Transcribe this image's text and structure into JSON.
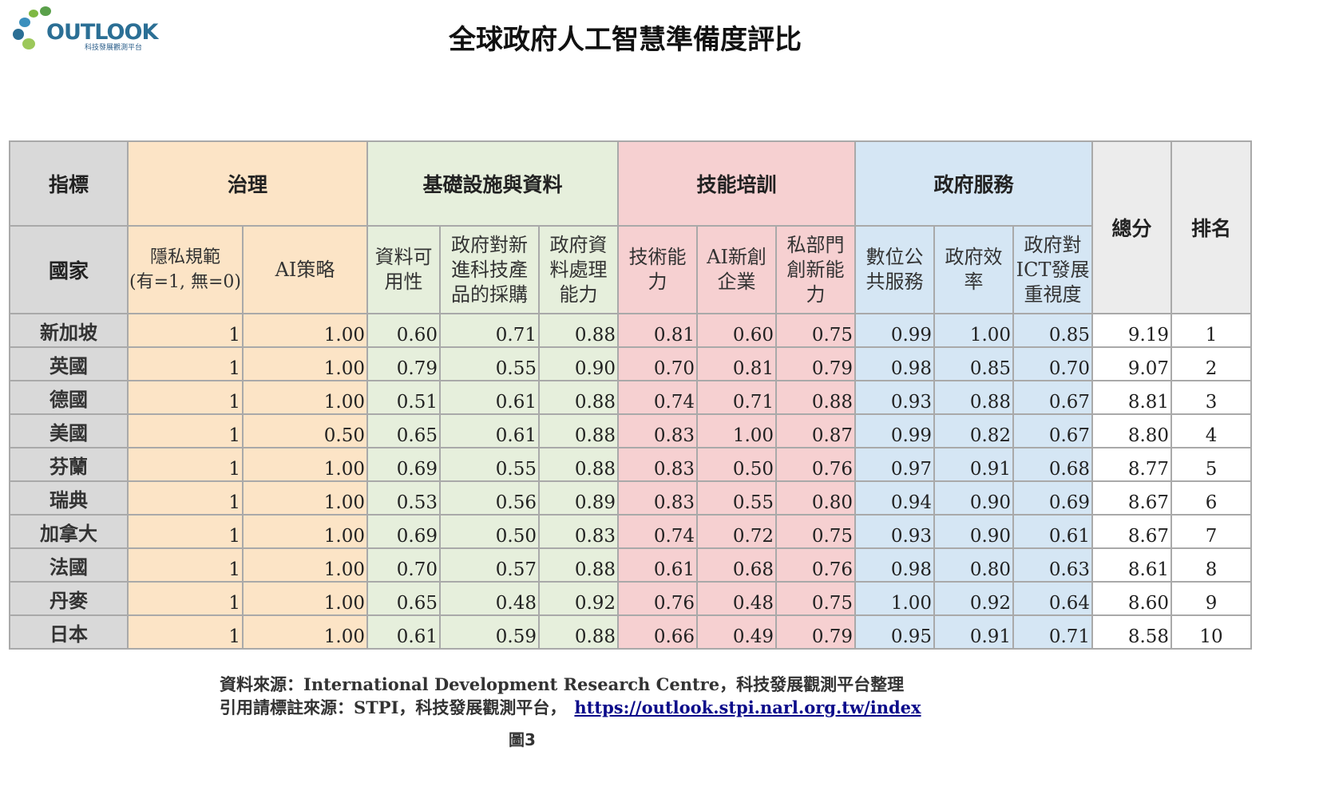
{
  "logo": {
    "word": "OUTLOOK",
    "subtitle": "科技發展觀測平台",
    "dot_colors": [
      "#7fb843",
      "#5aa04a",
      "#3b8fbd",
      "#2b6f95",
      "#9cc85a"
    ]
  },
  "title": "全球政府人工智慧準備度評比",
  "colors": {
    "gray": "#d9d9d9",
    "governance": "#fce4c6",
    "infrastructure": "#e6efdc",
    "skills": "#f6d0d1",
    "services": "#d5e6f4",
    "border": "#a9a9a9",
    "link": "#0b0b8a"
  },
  "table": {
    "indicator_label": "指標",
    "country_label": "國家",
    "total_label": "總分",
    "rank_label": "排名",
    "groups": [
      {
        "name": "治理",
        "columns": [
          "隱私規範\n(有=1, 無=0)",
          "AI策略"
        ]
      },
      {
        "name": "基礎設施與資料",
        "columns": [
          "資料可\n用性",
          "政府對新\n進科技產\n品的採購",
          "政府資\n料處理\n能力"
        ]
      },
      {
        "name": "技能培訓",
        "columns": [
          "技術能\n力",
          "AI新創\n企業",
          "私部門\n創新能\n力"
        ]
      },
      {
        "name": "政府服務",
        "columns": [
          "數位公\n共服務",
          "政府效\n率",
          "政府對\nICT發展\n重視度"
        ]
      }
    ],
    "rows": [
      {
        "country": "新加坡",
        "values": [
          "1",
          "1.00",
          "0.60",
          "0.71",
          "0.88",
          "0.81",
          "0.60",
          "0.75",
          "0.99",
          "1.00",
          "0.85"
        ],
        "total": "9.19",
        "rank": "1"
      },
      {
        "country": "英國",
        "values": [
          "1",
          "1.00",
          "0.79",
          "0.55",
          "0.90",
          "0.70",
          "0.81",
          "0.79",
          "0.98",
          "0.85",
          "0.70"
        ],
        "total": "9.07",
        "rank": "2"
      },
      {
        "country": "德國",
        "values": [
          "1",
          "1.00",
          "0.51",
          "0.61",
          "0.88",
          "0.74",
          "0.71",
          "0.88",
          "0.93",
          "0.88",
          "0.67"
        ],
        "total": "8.81",
        "rank": "3"
      },
      {
        "country": "美國",
        "values": [
          "1",
          "0.50",
          "0.65",
          "0.61",
          "0.88",
          "0.83",
          "1.00",
          "0.87",
          "0.99",
          "0.82",
          "0.67"
        ],
        "total": "8.80",
        "rank": "4"
      },
      {
        "country": "芬蘭",
        "values": [
          "1",
          "1.00",
          "0.69",
          "0.55",
          "0.88",
          "0.83",
          "0.50",
          "0.76",
          "0.97",
          "0.91",
          "0.68"
        ],
        "total": "8.77",
        "rank": "5"
      },
      {
        "country": "瑞典",
        "values": [
          "1",
          "1.00",
          "0.53",
          "0.56",
          "0.89",
          "0.83",
          "0.55",
          "0.80",
          "0.94",
          "0.90",
          "0.69"
        ],
        "total": "8.67",
        "rank": "6"
      },
      {
        "country": "加拿大",
        "values": [
          "1",
          "1.00",
          "0.69",
          "0.50",
          "0.83",
          "0.74",
          "0.72",
          "0.75",
          "0.93",
          "0.90",
          "0.61"
        ],
        "total": "8.67",
        "rank": "7"
      },
      {
        "country": "法國",
        "values": [
          "1",
          "1.00",
          "0.70",
          "0.57",
          "0.88",
          "0.61",
          "0.68",
          "0.76",
          "0.98",
          "0.80",
          "0.63"
        ],
        "total": "8.61",
        "rank": "8"
      },
      {
        "country": "丹麥",
        "values": [
          "1",
          "1.00",
          "0.65",
          "0.48",
          "0.92",
          "0.76",
          "0.48",
          "0.75",
          "1.00",
          "0.92",
          "0.64"
        ],
        "total": "8.60",
        "rank": "9"
      },
      {
        "country": "日本",
        "values": [
          "1",
          "1.00",
          "0.61",
          "0.59",
          "0.88",
          "0.66",
          "0.49",
          "0.79",
          "0.95",
          "0.91",
          "0.71"
        ],
        "total": "8.58",
        "rank": "10"
      }
    ]
  },
  "footer": {
    "source_line": "資料來源：International Development Research Centre，科技發展觀測平台整理",
    "cite_prefix": "引用請標註來源：STPI，科技發展觀測平台，",
    "cite_link": "https://outlook.stpi.narl.org.tw/index",
    "figure_label": "圖3"
  }
}
